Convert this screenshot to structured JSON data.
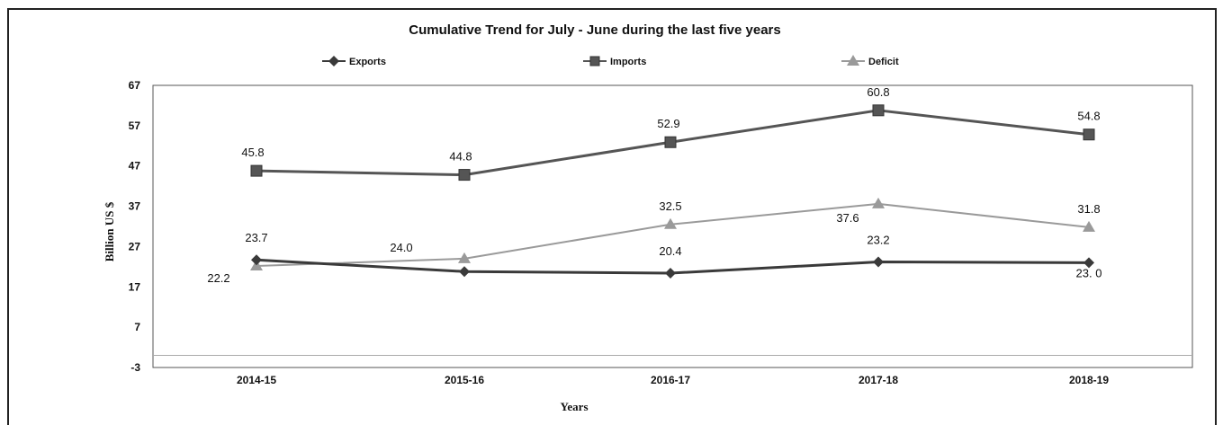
{
  "chart_data": {
    "type": "line",
    "title": "Cumulative Trend for July - June during the last five years",
    "xlabel": "Years",
    "ylabel": "Billion US $",
    "categories": [
      "2014-15",
      "2015-16",
      "2016-17",
      "2017-18",
      "2018-19"
    ],
    "y_ticks": [
      "67",
      "57",
      "47",
      "37",
      "27",
      "17",
      "7",
      "-3"
    ],
    "ylim": [
      -3,
      67
    ],
    "grid": false,
    "legend_position": "top",
    "series": [
      {
        "name": "Exports",
        "values": [
          23.7,
          20.8,
          20.4,
          23.2,
          23.0
        ],
        "labels": [
          "23.7",
          "",
          "20.4",
          "23.2",
          "23. 0"
        ],
        "color": "#3a3a3a",
        "marker": "diamond"
      },
      {
        "name": "Imports",
        "values": [
          45.8,
          44.8,
          52.9,
          60.8,
          54.8
        ],
        "labels": [
          "45.8",
          "44.8",
          "52.9",
          "60.8",
          "54.8"
        ],
        "color": "#555555",
        "marker": "square"
      },
      {
        "name": "Deficit",
        "values": [
          22.2,
          24.0,
          32.5,
          37.6,
          31.8
        ],
        "labels": [
          "22.2",
          "24.0",
          "32.5",
          "37.6",
          "31.8"
        ],
        "color": "#9a9a9a",
        "marker": "triangle"
      }
    ]
  }
}
